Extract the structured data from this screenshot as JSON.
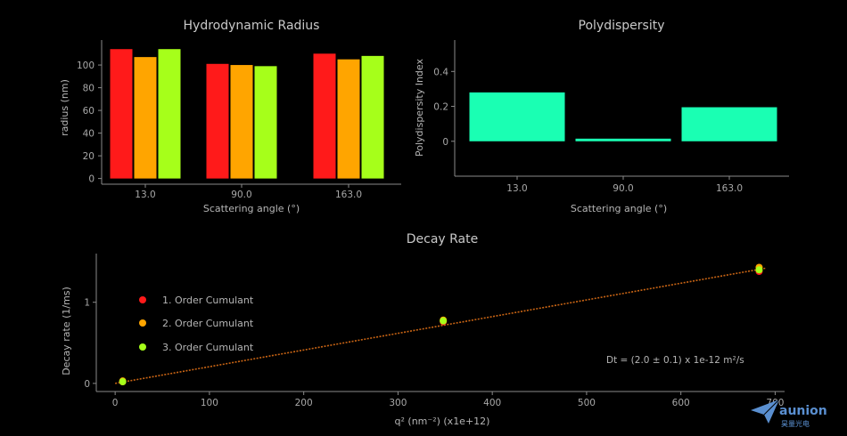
{
  "colors": {
    "series_a": "#ff1a1a",
    "series_b": "#ffa500",
    "series_c": "#a6ff1a",
    "pdi_bar": "#1affb3",
    "fit_line": "#c86414",
    "logo": "#5a8fd0"
  },
  "logo": {
    "text": "aunion",
    "subtext": "昊量光电",
    "icon": "paper-plane-icon"
  },
  "chart_data": [
    {
      "type": "bar",
      "title": "Hydrodynamic Radius",
      "xlabel": "Scattering angle (°)",
      "ylabel": "radius (nm)",
      "categories": [
        "13.0",
        "90.0",
        "163.0"
      ],
      "series": [
        {
          "color_key": "series_a",
          "values": [
            114,
            101,
            110
          ]
        },
        {
          "color_key": "series_b",
          "values": [
            107,
            100,
            105
          ]
        },
        {
          "color_key": "series_c",
          "values": [
            114,
            99,
            108
          ]
        }
      ],
      "ylim": [
        -5,
        122
      ],
      "yticks": [
        0,
        20,
        40,
        60,
        80,
        100
      ],
      "ytick_labels": [
        "0",
        "20",
        "40",
        "60",
        "80",
        "100"
      ],
      "grid": false
    },
    {
      "type": "bar",
      "title": "Polydispersity",
      "xlabel": "Scattering angle (°)",
      "ylabel": "Polydispersity Index",
      "categories": [
        "13.0",
        "90.0",
        "163.0"
      ],
      "values": [
        0.28,
        0.015,
        0.195
      ],
      "ylim": [
        -0.2,
        0.58
      ],
      "yticks": [
        0,
        0.2,
        0.4
      ],
      "ytick_labels": [
        "0",
        "0.2",
        "0.4"
      ],
      "grid": false
    },
    {
      "type": "scatter",
      "title": "Decay Rate",
      "xlabel": "q² (nm⁻²) (x1e+12)",
      "ylabel": "Decay rate (1/ms)",
      "xlim": [
        -20,
        710
      ],
      "ylim": [
        -0.1,
        1.6
      ],
      "xticks": [
        0,
        100,
        200,
        300,
        400,
        500,
        600,
        700
      ],
      "xtick_labels": [
        "0",
        "100",
        "200",
        "300",
        "400",
        "500",
        "600",
        "700"
      ],
      "yticks": [
        0,
        1
      ],
      "ytick_labels": [
        "0",
        "1"
      ],
      "series": [
        {
          "name": "1. Order Cumulant",
          "color_key": "series_a",
          "x": [
            8,
            348,
            683
          ],
          "y": [
            0.02,
            0.76,
            1.38
          ]
        },
        {
          "name": "2. Order Cumulant",
          "color_key": "series_b",
          "x": [
            8,
            348,
            683
          ],
          "y": [
            0.03,
            0.78,
            1.43
          ]
        },
        {
          "name": "3. Order Cumulant",
          "color_key": "series_c",
          "x": [
            8,
            348,
            683
          ],
          "y": [
            0.02,
            0.77,
            1.4
          ]
        }
      ],
      "fit_line": {
        "x": [
          0,
          690
        ],
        "y": [
          0.0,
          1.42
        ]
      },
      "annotation": "Dt = (2.0 ± 0.1) x 1e-12 m²/s",
      "legend_position": "left",
      "grid": false
    }
  ]
}
